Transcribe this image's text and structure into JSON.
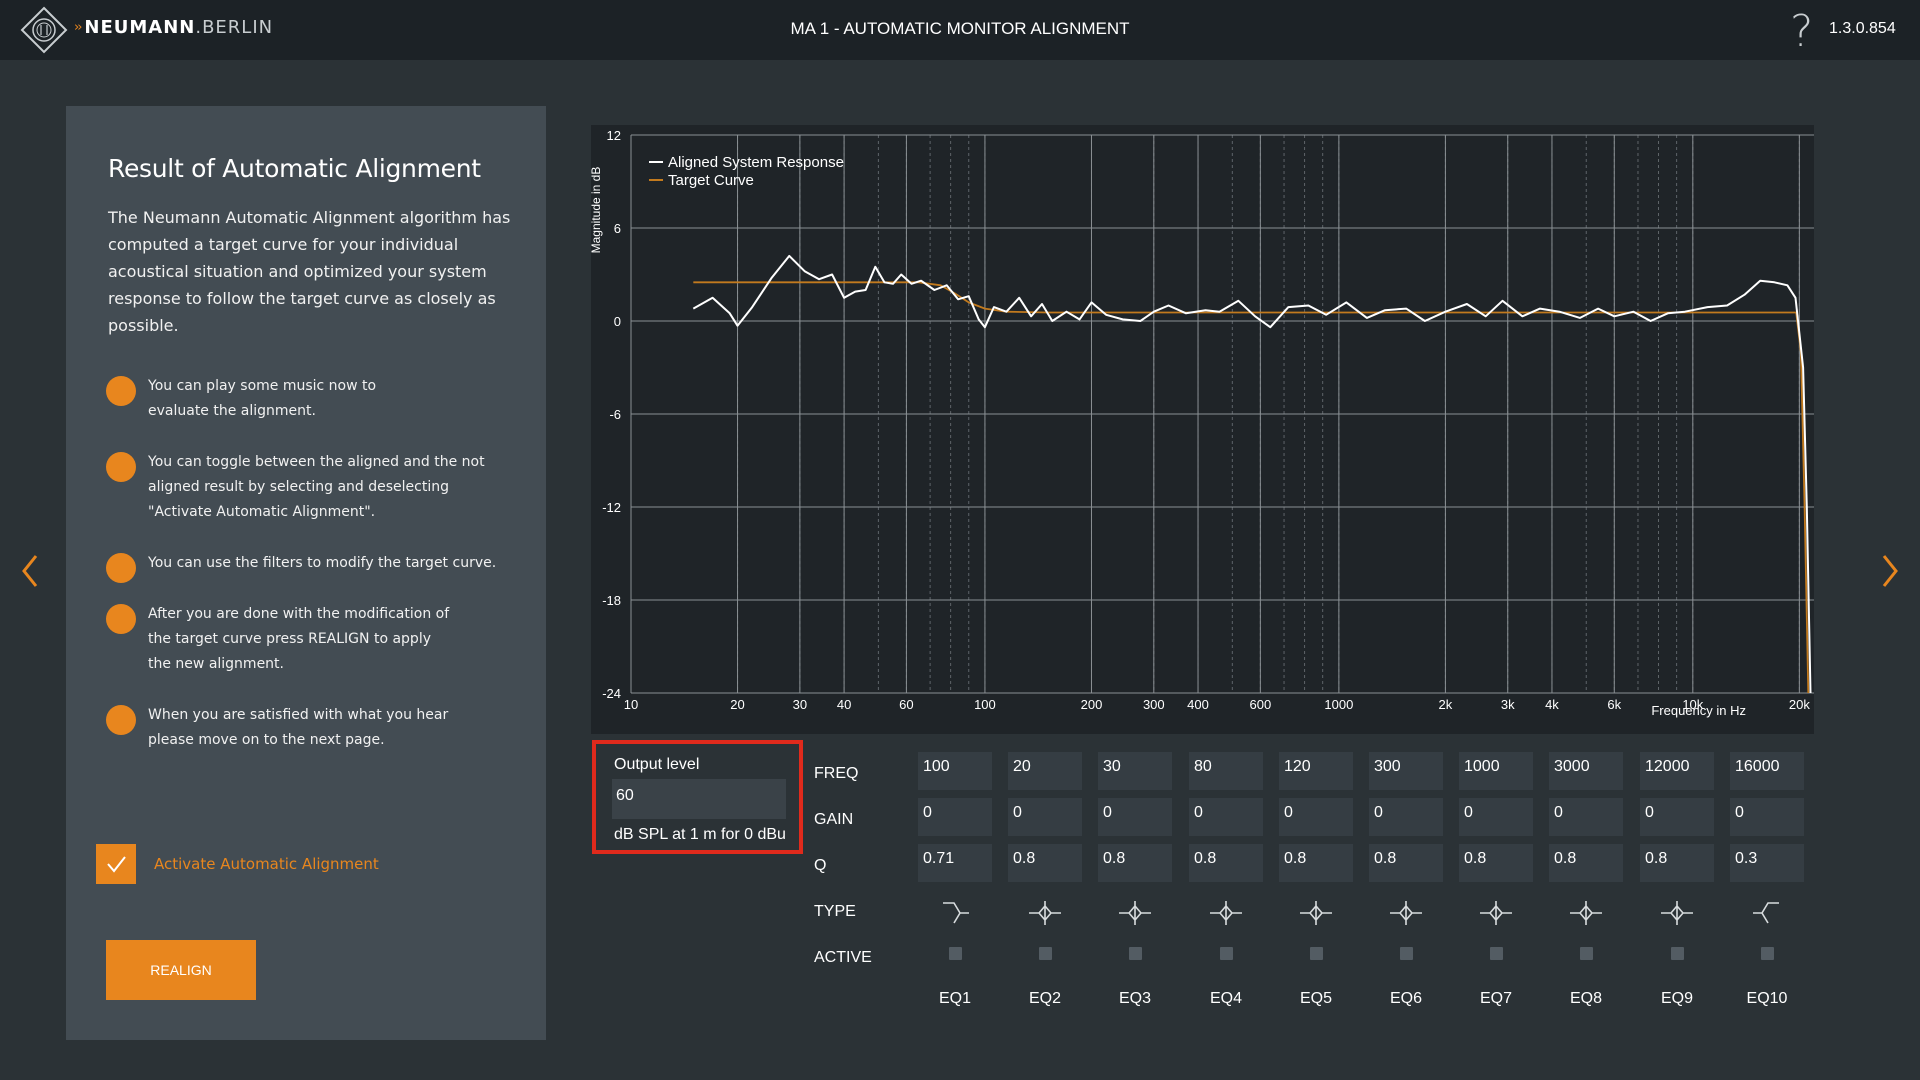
{
  "header": {
    "brand_bold": "NEUMANN",
    "brand_light": ".BERLIN",
    "title": "MA 1 - AUTOMATIC MONITOR ALIGNMENT",
    "help_glyph": "?",
    "version": "1.3.0.854"
  },
  "panel": {
    "title": "Result of Automatic Alignment",
    "intro": "The Neumann Automatic Alignment algorithm has computed a target curve for your individual acoustical situation and optimized your system response to follow the target curve as closely as possible.",
    "steps": [
      "You can play some music now to evaluate the alignment.",
      "You can toggle between the aligned and the not aligned result by selecting and deselecting \"Activate Automatic Alignment\".",
      "You can use the filters to modify the target curve.",
      "After you are done with the modification of the target curve press REALIGN to apply the new alignment.",
      "When you are satisfied with what you hear please move on to the next page."
    ],
    "activate_label": "Activate Automatic Alignment",
    "activate_checked": true,
    "realign_label": "REALIGN"
  },
  "output": {
    "label": "Output level",
    "value": "60",
    "unit": "dB SPL at 1 m for 0 dBu"
  },
  "eq": {
    "row_labels": {
      "freq": "FREQ",
      "gain": "GAIN",
      "q": "Q",
      "type": "TYPE",
      "active": "ACTIVE"
    },
    "bands": [
      {
        "name": "EQ1",
        "freq": "100",
        "gain": "0",
        "q": "0.71",
        "type": "low-shelf",
        "active": false
      },
      {
        "name": "EQ2",
        "freq": "20",
        "gain": "0",
        "q": "0.8",
        "type": "peak",
        "active": false
      },
      {
        "name": "EQ3",
        "freq": "30",
        "gain": "0",
        "q": "0.8",
        "type": "peak",
        "active": false
      },
      {
        "name": "EQ4",
        "freq": "80",
        "gain": "0",
        "q": "0.8",
        "type": "peak",
        "active": false
      },
      {
        "name": "EQ5",
        "freq": "120",
        "gain": "0",
        "q": "0.8",
        "type": "peak",
        "active": false
      },
      {
        "name": "EQ6",
        "freq": "300",
        "gain": "0",
        "q": "0.8",
        "type": "peak",
        "active": false
      },
      {
        "name": "EQ7",
        "freq": "1000",
        "gain": "0",
        "q": "0.8",
        "type": "peak",
        "active": false
      },
      {
        "name": "EQ8",
        "freq": "3000",
        "gain": "0",
        "q": "0.8",
        "type": "peak",
        "active": false
      },
      {
        "name": "EQ9",
        "freq": "12000",
        "gain": "0",
        "q": "0.8",
        "type": "peak",
        "active": false
      },
      {
        "name": "EQ10",
        "freq": "16000",
        "gain": "0",
        "q": "0.3",
        "type": "high-shelf",
        "active": false
      }
    ]
  },
  "colors": {
    "accent": "#e8861e",
    "highlight_border": "#e02a1c",
    "response_line": "#ffffff",
    "target_line": "#c27a1e"
  },
  "chart_data": {
    "type": "line",
    "xscale": "log",
    "xlim": [
      10,
      22000
    ],
    "ylim": [
      -24,
      12
    ],
    "xlabel": "Frequency in Hz",
    "ylabel": "Magnitude in dB",
    "yticks": [
      12,
      6,
      0,
      -6,
      -12,
      -18,
      -24
    ],
    "xticks": [
      {
        "v": 10,
        "l": "10"
      },
      {
        "v": 20,
        "l": "20"
      },
      {
        "v": 30,
        "l": "30"
      },
      {
        "v": 40,
        "l": "40"
      },
      {
        "v": 60,
        "l": "60"
      },
      {
        "v": 100,
        "l": "100"
      },
      {
        "v": 200,
        "l": "200"
      },
      {
        "v": 300,
        "l": "300"
      },
      {
        "v": 400,
        "l": "400"
      },
      {
        "v": 600,
        "l": "600"
      },
      {
        "v": 1000,
        "l": "1000"
      },
      {
        "v": 2000,
        "l": "2k"
      },
      {
        "v": 3000,
        "l": "3k"
      },
      {
        "v": 4000,
        "l": "4k"
      },
      {
        "v": 6000,
        "l": "6k"
      },
      {
        "v": 10000,
        "l": "10k"
      },
      {
        "v": 20000,
        "l": "20k"
      }
    ],
    "grid": true,
    "legend_position": "top-left",
    "series": [
      {
        "name": "Aligned System Response",
        "color": "#ffffff",
        "points": [
          [
            15,
            0.8
          ],
          [
            17,
            1.5
          ],
          [
            19,
            0.5
          ],
          [
            20,
            -0.3
          ],
          [
            22,
            0.9
          ],
          [
            25,
            2.8
          ],
          [
            28,
            4.2
          ],
          [
            31,
            3.2
          ],
          [
            34,
            2.7
          ],
          [
            37,
            3.0
          ],
          [
            40,
            1.5
          ],
          [
            43,
            1.9
          ],
          [
            46,
            2.0
          ],
          [
            49,
            3.5
          ],
          [
            52,
            2.5
          ],
          [
            55,
            2.4
          ],
          [
            58,
            3.0
          ],
          [
            62,
            2.4
          ],
          [
            66,
            2.6
          ],
          [
            72,
            2.0
          ],
          [
            78,
            2.3
          ],
          [
            84,
            1.4
          ],
          [
            90,
            1.6
          ],
          [
            96,
            0.1
          ],
          [
            100,
            -0.4
          ],
          [
            106,
            0.9
          ],
          [
            115,
            0.6
          ],
          [
            125,
            1.5
          ],
          [
            135,
            0.3
          ],
          [
            145,
            1.1
          ],
          [
            155,
            0.0
          ],
          [
            170,
            0.6
          ],
          [
            185,
            0.1
          ],
          [
            200,
            1.2
          ],
          [
            220,
            0.4
          ],
          [
            245,
            0.1
          ],
          [
            275,
            0.0
          ],
          [
            300,
            0.6
          ],
          [
            330,
            1.0
          ],
          [
            370,
            0.5
          ],
          [
            420,
            0.7
          ],
          [
            460,
            0.6
          ],
          [
            520,
            1.3
          ],
          [
            580,
            0.3
          ],
          [
            640,
            -0.4
          ],
          [
            720,
            0.9
          ],
          [
            820,
            1.0
          ],
          [
            920,
            0.4
          ],
          [
            1050,
            1.2
          ],
          [
            1200,
            0.2
          ],
          [
            1350,
            0.7
          ],
          [
            1550,
            0.8
          ],
          [
            1750,
            0.0
          ],
          [
            2000,
            0.6
          ],
          [
            2300,
            1.1
          ],
          [
            2600,
            0.3
          ],
          [
            2900,
            1.3
          ],
          [
            3300,
            0.3
          ],
          [
            3700,
            0.8
          ],
          [
            4200,
            0.6
          ],
          [
            4800,
            0.2
          ],
          [
            5400,
            0.8
          ],
          [
            6000,
            0.3
          ],
          [
            6800,
            0.6
          ],
          [
            7600,
            0.0
          ],
          [
            8500,
            0.5
          ],
          [
            9500,
            0.6
          ],
          [
            11000,
            0.9
          ],
          [
            12500,
            1.0
          ],
          [
            14000,
            1.7
          ],
          [
            15500,
            2.6
          ],
          [
            17000,
            2.5
          ],
          [
            18500,
            2.3
          ],
          [
            19500,
            1.5
          ],
          [
            20500,
            -3.0
          ],
          [
            21000,
            -12.0
          ],
          [
            21500,
            -24.0
          ]
        ]
      },
      {
        "name": "Target Curve",
        "color": "#c27a1e",
        "points": [
          [
            15,
            2.5
          ],
          [
            40,
            2.5
          ],
          [
            65,
            2.5
          ],
          [
            75,
            2.3
          ],
          [
            82,
            1.8
          ],
          [
            90,
            1.2
          ],
          [
            100,
            0.8
          ],
          [
            115,
            0.6
          ],
          [
            150,
            0.55
          ],
          [
            1000,
            0.55
          ],
          [
            10000,
            0.55
          ],
          [
            19600,
            0.55
          ],
          [
            20200,
            -2.0
          ],
          [
            20700,
            -12.0
          ],
          [
            21200,
            -24.0
          ]
        ]
      }
    ]
  }
}
